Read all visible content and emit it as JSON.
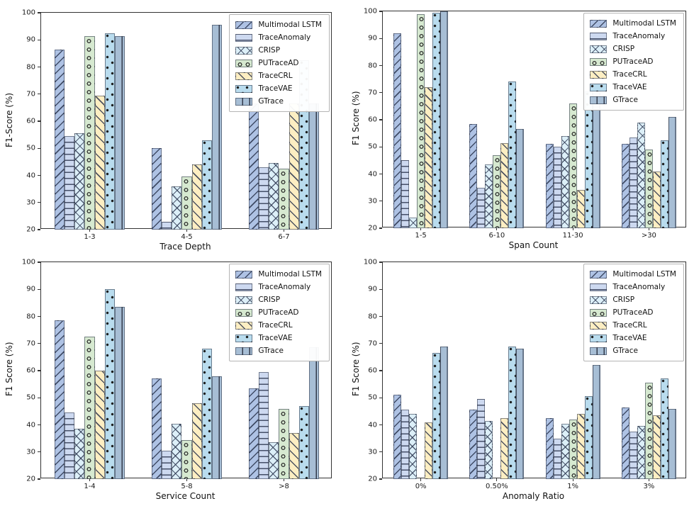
{
  "series_styles": [
    {
      "name": "Multimodal LSTM",
      "color": "#aec2e4",
      "hatch": "/"
    },
    {
      "name": "TraceAnomaly",
      "color": "#cdd9f0",
      "hatch": "-"
    },
    {
      "name": "CRISP",
      "color": "#dceff8",
      "hatch": "x"
    },
    {
      "name": "PUTraceAD",
      "color": "#d6e9d0",
      "hatch": "o"
    },
    {
      "name": "TraceCRL",
      "color": "#fdeec2",
      "hatch": "\\"
    },
    {
      "name": "TraceVAE",
      "color": "#b9dcee",
      "hatch": "."
    },
    {
      "name": "GTrace",
      "color": "#a7bed5",
      "hatch": "|"
    }
  ],
  "chart_data": [
    {
      "type": "bar",
      "xlabel": "Trace Depth",
      "ylabel": "F1-Score (%)",
      "ylim": [
        20,
        100
      ],
      "yticks": [
        20,
        30,
        40,
        50,
        60,
        70,
        80,
        90,
        100
      ],
      "grid": false,
      "legend_position": "upper right",
      "categories": [
        "1-3",
        "4-5",
        "6-7"
      ],
      "series": [
        {
          "name": "Multimodal LSTM",
          "values": [
            86.5,
            50,
            66.5
          ]
        },
        {
          "name": "TraceAnomaly",
          "values": [
            54.5,
            23,
            43
          ]
        },
        {
          "name": "CRISP",
          "values": [
            55.5,
            36,
            44.5
          ]
        },
        {
          "name": "PUTraceAD",
          "values": [
            91.5,
            39.5,
            42.5
          ]
        },
        {
          "name": "TraceCRL",
          "values": [
            69.5,
            44,
            66.5
          ]
        },
        {
          "name": "TraceVAE",
          "values": [
            92.5,
            53,
            82.5
          ]
        },
        {
          "name": "GTrace",
          "values": [
            91.5,
            95.5,
            66.5
          ]
        }
      ]
    },
    {
      "type": "bar",
      "xlabel": "Span Count",
      "ylabel": "F1 Score (%)",
      "ylim": [
        20,
        100
      ],
      "yticks": [
        20,
        30,
        40,
        50,
        60,
        70,
        80,
        90,
        100
      ],
      "grid": false,
      "legend_position": "upper right",
      "categories": [
        "1-5",
        "6-10",
        "11-30",
        ">30"
      ],
      "series": [
        {
          "name": "Multimodal LSTM",
          "values": [
            92,
            58.5,
            51,
            51
          ]
        },
        {
          "name": "TraceAnomaly",
          "values": [
            45,
            35,
            50,
            53.5
          ]
        },
        {
          "name": "CRISP",
          "values": [
            24,
            43.5,
            54,
            59
          ]
        },
        {
          "name": "PUTraceAD",
          "values": [
            99,
            47,
            66,
            49
          ]
        },
        {
          "name": "TraceCRL",
          "values": [
            72,
            51.5,
            34,
            41
          ]
        },
        {
          "name": "TraceVAE",
          "values": [
            99.5,
            74,
            70.5,
            52.5
          ]
        },
        {
          "name": "GTrace",
          "values": [
            100,
            56.5,
            71,
            61
          ]
        }
      ]
    },
    {
      "type": "bar",
      "xlabel": "Service Count",
      "ylabel": "F1 Score (%)",
      "ylim": [
        20,
        100
      ],
      "yticks": [
        20,
        30,
        40,
        50,
        60,
        70,
        80,
        90,
        100
      ],
      "grid": false,
      "legend_position": "upper right",
      "categories": [
        "1-4",
        "5-8",
        ">8"
      ],
      "series": [
        {
          "name": "Multimodal LSTM",
          "values": [
            78.5,
            57,
            53.5
          ]
        },
        {
          "name": "TraceAnomaly",
          "values": [
            44.5,
            30.5,
            59.5
          ]
        },
        {
          "name": "CRISP",
          "values": [
            38.5,
            40.5,
            33.5
          ]
        },
        {
          "name": "PUTraceAD",
          "values": [
            72.5,
            34.5,
            46
          ]
        },
        {
          "name": "TraceCRL",
          "values": [
            60,
            48,
            37
          ]
        },
        {
          "name": "TraceVAE",
          "values": [
            90,
            68,
            47
          ]
        },
        {
          "name": "GTrace",
          "values": [
            83.5,
            58,
            68.5
          ]
        }
      ]
    },
    {
      "type": "bar",
      "xlabel": "Anomaly Ratio",
      "ylabel": "F1 Score (%)",
      "ylim": [
        20,
        100
      ],
      "yticks": [
        20,
        30,
        40,
        50,
        60,
        70,
        80,
        90,
        100
      ],
      "grid": false,
      "legend_position": "upper right",
      "categories": [
        "0%",
        "0.50%",
        "1%",
        "3%"
      ],
      "series": [
        {
          "name": "Multimodal LSTM",
          "values": [
            51,
            45.5,
            42.5,
            46.5
          ]
        },
        {
          "name": "TraceAnomaly",
          "values": [
            45.5,
            49.5,
            35,
            37.5
          ]
        },
        {
          "name": "CRISP",
          "values": [
            44,
            41.5,
            40.5,
            39.5
          ]
        },
        {
          "name": "PUTraceAD",
          "values": [
            null,
            null,
            42,
            55.5
          ]
        },
        {
          "name": "TraceCRL",
          "values": [
            41,
            42.5,
            44,
            43.5
          ]
        },
        {
          "name": "TraceVAE",
          "values": [
            66.5,
            69,
            50.5,
            57
          ]
        },
        {
          "name": "GTrace",
          "values": [
            69,
            68,
            62,
            46
          ]
        }
      ]
    }
  ]
}
